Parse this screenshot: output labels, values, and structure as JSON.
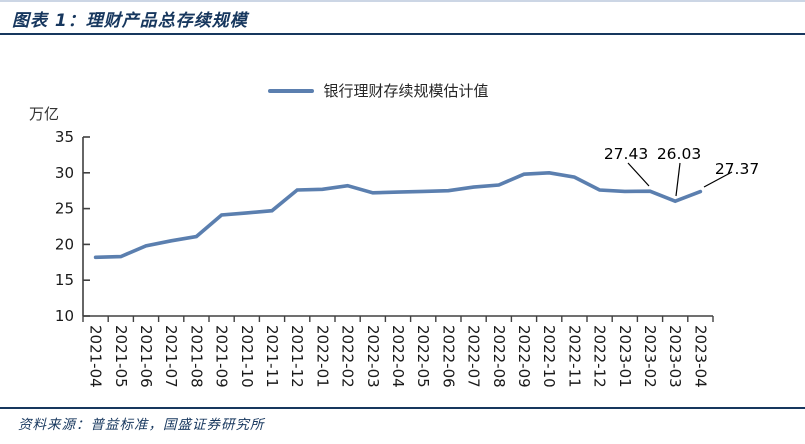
{
  "page": {
    "title": "图表 1：理财产品总存续规模",
    "source_note": "资料来源：普益标准，国盛证券研究所",
    "accent_color": "#17375E"
  },
  "legend": {
    "label": "银行理财存续规模估计值",
    "line_color": "#5B7FAF"
  },
  "chart_data": {
    "type": "line",
    "title": "理财产品总存续规模",
    "unit_label": "万亿",
    "categories": [
      "2021-04",
      "2021-05",
      "2021-06",
      "2021-07",
      "2021-08",
      "2021-09",
      "2021-10",
      "2021-11",
      "2021-12",
      "2022-01",
      "2022-02",
      "2022-03",
      "2022-04",
      "2022-05",
      "2022-06",
      "2022-07",
      "2022-08",
      "2022-09",
      "2022-10",
      "2022-11",
      "2022-12",
      "2023-01",
      "2023-02",
      "2023-03",
      "2023-04"
    ],
    "series": [
      {
        "name": "银行理财存续规模估计值",
        "color": "#5B7FAF",
        "values": [
          18.2,
          18.3,
          19.8,
          20.5,
          21.1,
          24.1,
          24.4,
          24.7,
          27.6,
          27.7,
          28.2,
          27.2,
          27.3,
          27.4,
          27.5,
          28.0,
          28.3,
          29.8,
          30.0,
          29.4,
          27.6,
          27.4,
          27.43,
          26.03,
          27.37
        ]
      }
    ],
    "ylim": [
      10,
      35
    ],
    "yticks": [
      10,
      15,
      20,
      25,
      30,
      35
    ],
    "grid": false,
    "legend_position": "top",
    "x_label_rotation": 90,
    "annotations": [
      {
        "category": "2023-02",
        "index": 22,
        "text": "27.43"
      },
      {
        "category": "2023-03",
        "index": 23,
        "text": "26.03"
      },
      {
        "category": "2023-04",
        "index": 24,
        "text": "27.37"
      }
    ]
  }
}
